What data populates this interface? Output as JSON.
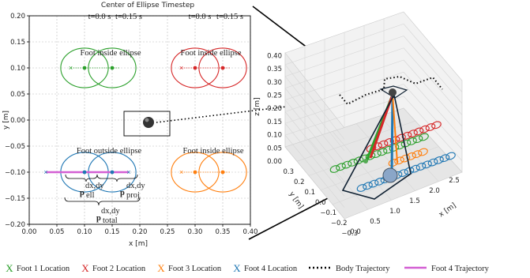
{
  "chart_data": [
    {
      "type": "scatter",
      "title": "Center of Ellipse Timestep",
      "xlabel": "x [m]",
      "ylabel": "y [m]",
      "xlim": [
        0.0,
        0.4
      ],
      "ylim": [
        -0.2,
        0.2
      ],
      "xticks": [
        "0.00",
        "0.05",
        "0.10",
        "0.15",
        "0.20",
        "0.25",
        "0.30",
        "0.35",
        "0.40"
      ],
      "yticks": [
        "0.20",
        "0.15",
        "0.10",
        "0.05",
        "0.00",
        "−0.05",
        "−0.10",
        "−0.15",
        "−0.20"
      ],
      "grid": true,
      "time_labels": [
        "t=0.0 s",
        "t=0.15 s",
        "t=0.0 s",
        "t=0.15 s"
      ],
      "series": [
        {
          "name": "Foot 1 Location",
          "color": "#2ca02c",
          "ellipse_centers": [
            [
              0.1,
              0.1
            ],
            [
              0.15,
              0.1
            ]
          ],
          "foot": [
            0.075,
            0.1
          ],
          "label": "Foot inside ellipse"
        },
        {
          "name": "Foot 2 Location",
          "color": "#d62728",
          "ellipse_centers": [
            [
              0.3,
              0.1
            ],
            [
              0.35,
              0.1
            ]
          ],
          "foot": [
            0.275,
            0.1
          ],
          "label": "Foot inside ellipse"
        },
        {
          "name": "Foot 3 Location",
          "color": "#ff7f0e",
          "ellipse_centers": [
            [
              0.3,
              -0.1
            ],
            [
              0.35,
              -0.1
            ]
          ],
          "foot": [
            0.275,
            -0.1
          ],
          "label": "Foot inside ellipse"
        },
        {
          "name": "Foot 4 Location",
          "color": "#1f77b4",
          "ellipse_centers": [
            [
              0.1,
              -0.1
            ],
            [
              0.15,
              -0.1
            ]
          ],
          "foot": [
            0.03,
            -0.1
          ],
          "foot_end": [
            0.18,
            -0.1
          ],
          "label": "Foot outside ellipse"
        }
      ],
      "annotations": {
        "p_ell": {
          "main": "p",
          "sub": "ell",
          "sup": "dx,dy"
        },
        "p_proj": {
          "main": "p",
          "sub": "proj",
          "sup": "dx,dy"
        },
        "p_total": {
          "main": "p",
          "sub": "total",
          "sup": "dx,dy"
        }
      }
    },
    {
      "type": "line",
      "xlabel": "x [m]",
      "ylabel": "y [m]",
      "zlabel": "z [m]",
      "xticks": [
        "0.0",
        "0.5",
        "1.0",
        "1.5",
        "2.0",
        "2.5"
      ],
      "yticks": [
        "0.3",
        "0.2",
        "0.1",
        "0.0",
        "−0.1",
        "−0.2",
        "−0.3"
      ],
      "zticks": [
        "0.00",
        "0.05",
        "0.10",
        "0.15",
        "0.20",
        "0.25",
        "0.30",
        "0.35",
        "0.40"
      ]
    }
  ],
  "legend": [
    {
      "label": "Foot 1 Location",
      "color": "#2ca02c",
      "marker": "X"
    },
    {
      "label": "Foot 2 Location",
      "color": "#d62728",
      "marker": "X"
    },
    {
      "label": "Foot 3 Location",
      "color": "#ff7f0e",
      "marker": "X"
    },
    {
      "label": "Foot 4 Location",
      "color": "#1f77b4",
      "marker": "X"
    },
    {
      "label": "Body Trajectory",
      "color": "#000000",
      "marker": "dotted"
    },
    {
      "label": "Foot 4 Trajectory",
      "color": "#d35fd3",
      "marker": "line"
    }
  ]
}
